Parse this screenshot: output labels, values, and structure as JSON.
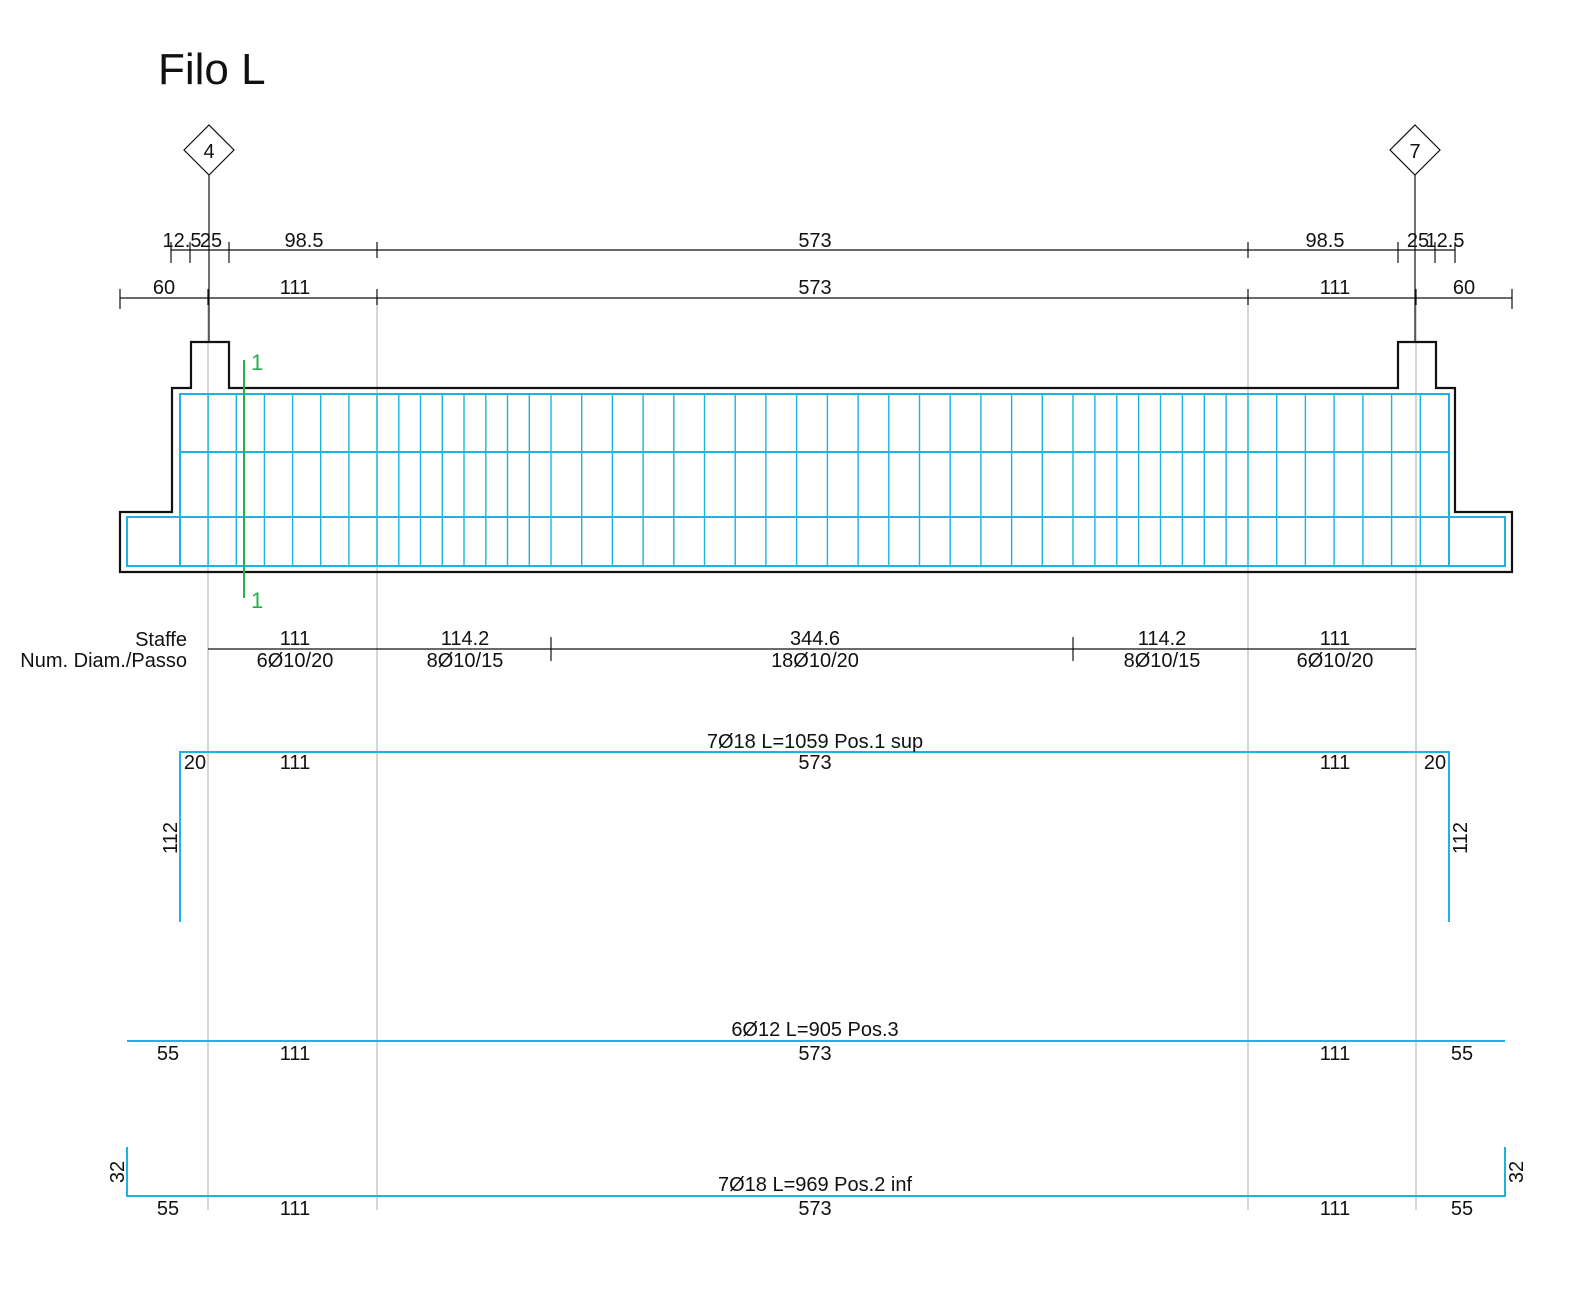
{
  "title": "Filo L",
  "column_markers": {
    "left": "4",
    "right": "7"
  },
  "dimensions": {
    "top_row": [
      "12.5",
      "25",
      "98.5",
      "573",
      "98.5",
      "25",
      "12.5"
    ],
    "second_row": [
      "60",
      "111",
      "573",
      "111",
      "60"
    ]
  },
  "section_cut": {
    "top_label": "1",
    "bottom_label": "1"
  },
  "stirrups": {
    "header_line1": "Staffe",
    "header_line2": "Num. Diam./Passo",
    "lengths": [
      "111",
      "114.2",
      "344.6",
      "114.2",
      "111"
    ],
    "specs": [
      "6Ø10/20",
      "8Ø10/15",
      "18Ø10/20",
      "8Ø10/15",
      "6Ø10/20"
    ]
  },
  "bar_top": {
    "label": "7Ø18 L=1059 Pos.1 sup",
    "segments": [
      "20",
      "111",
      "573",
      "111",
      "20"
    ],
    "hook_left": "112",
    "hook_right": "112"
  },
  "bar_mid": {
    "label": "6Ø12 L=905 Pos.3",
    "segments": [
      "55",
      "111",
      "573",
      "111",
      "55"
    ]
  },
  "bar_bottom": {
    "label": "7Ø18 L=969 Pos.2 inf",
    "segments": [
      "55",
      "111",
      "573",
      "111",
      "55"
    ],
    "hook_left": "32",
    "hook_right": "32"
  },
  "colors": {
    "rebar": "#1ab4e4",
    "section_cut": "#22b14c",
    "axis": "#c8c8c8",
    "ink": "#111111"
  }
}
